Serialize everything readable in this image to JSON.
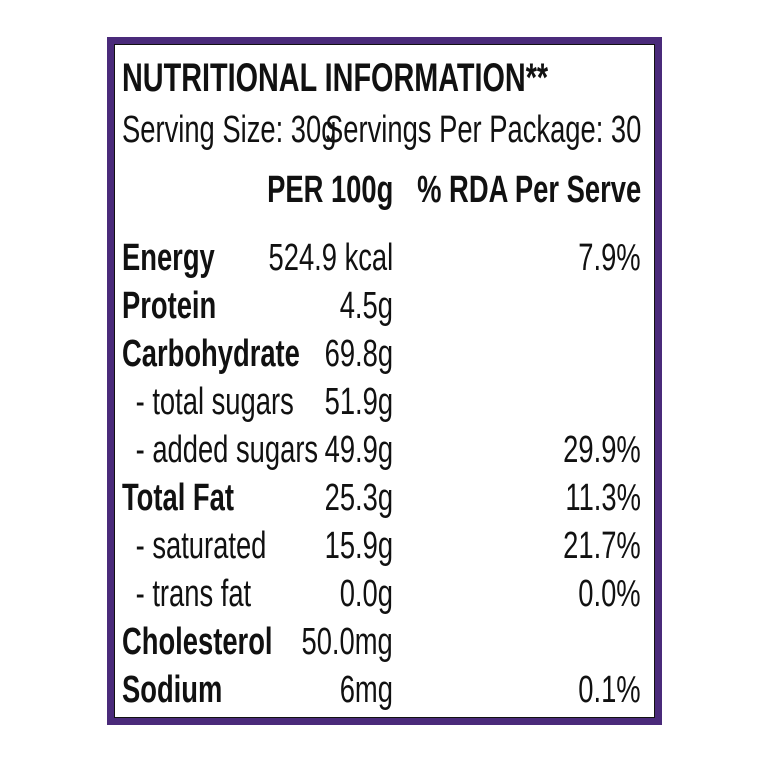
{
  "title": "NUTRITIONAL INFORMATION**",
  "serving_size": "Serving Size: 30g",
  "servings_per_package": "Servings Per Package: 30",
  "headers": {
    "per100": "PER 100g",
    "rda": "% RDA Per Serve"
  },
  "colors": {
    "border": "#4a2a7a"
  },
  "rows": [
    {
      "label": "Energy",
      "bold": true,
      "per100": "524.9 kcal",
      "rda": "7.9%"
    },
    {
      "label": "Protein",
      "bold": true,
      "per100": "4.5g",
      "rda": ""
    },
    {
      "label": "Carbohydrate",
      "bold": true,
      "per100": "69.8g",
      "rda": ""
    },
    {
      "label": " - total sugars",
      "bold": false,
      "per100": "51.9g",
      "rda": ""
    },
    {
      "label": " - added sugars",
      "bold": false,
      "per100": "49.9g",
      "rda": "29.9%"
    },
    {
      "label": "Total Fat",
      "bold": true,
      "per100": "25.3g",
      "rda": "11.3%"
    },
    {
      "label": " - saturated",
      "bold": false,
      "per100": "15.9g",
      "rda": "21.7%"
    },
    {
      "label": " - trans fat",
      "bold": false,
      "per100": "0.0g",
      "rda": "0.0%"
    },
    {
      "label": "Cholesterol",
      "bold": true,
      "per100": "50.0mg",
      "rda": ""
    },
    {
      "label": "Sodium",
      "bold": true,
      "per100": "6mg",
      "rda": "0.1%"
    }
  ]
}
